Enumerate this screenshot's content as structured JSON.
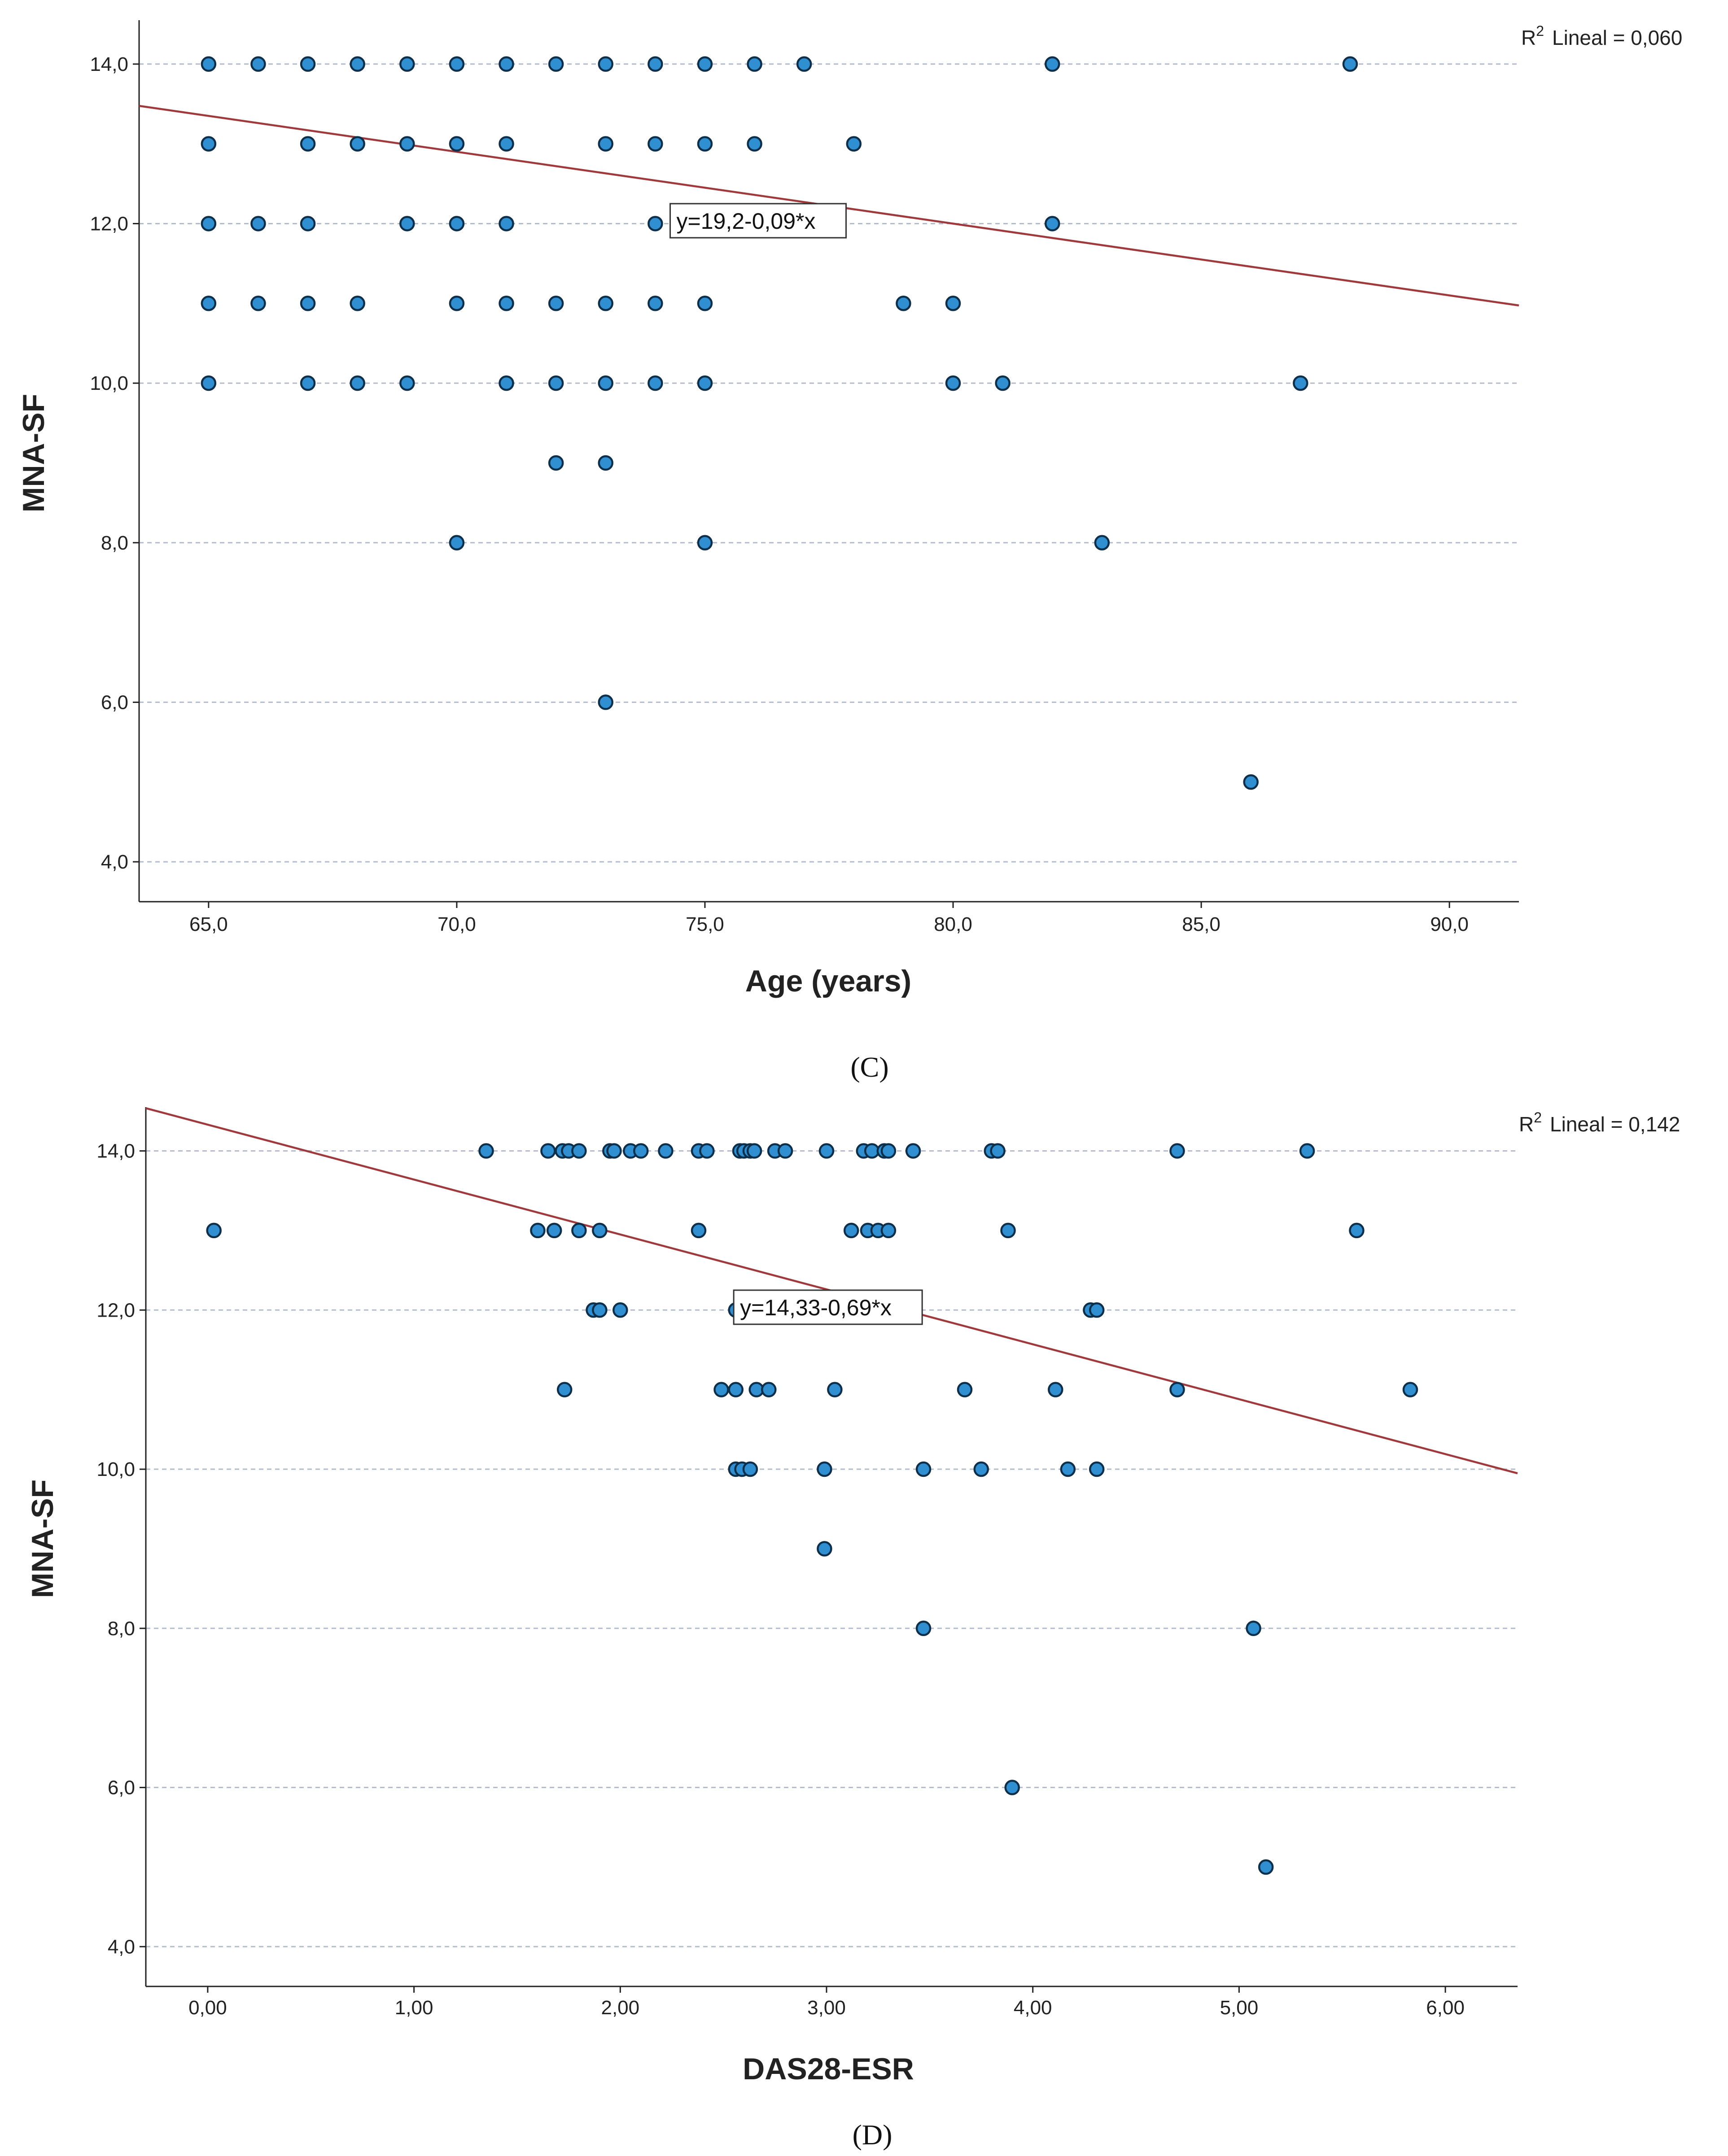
{
  "chart_data": [
    {
      "type": "scatter",
      "panel_label": "(C)",
      "xlabel": "Age (years)",
      "ylabel": "MNA-SF",
      "xlim": [
        63.6,
        91.4
      ],
      "ylim": [
        3.5,
        14.55
      ],
      "xticks": [
        65,
        70,
        75,
        80,
        85,
        90
      ],
      "xtick_labels": [
        "65,0",
        "70,0",
        "75,0",
        "80,0",
        "85,0",
        "90,0"
      ],
      "yticks": [
        4,
        6,
        8,
        10,
        12,
        14
      ],
      "ytick_labels": [
        "4,0",
        "6,0",
        "8,0",
        "10,0",
        "12,0",
        "14,0"
      ],
      "grid": "horizontal dashed",
      "r2_label": "Lineal = 0,060",
      "r2_superscript": "2",
      "r2_prefix": "R",
      "fit": {
        "intercept": 19.2,
        "slope": -0.09,
        "label": "y=19,2-0,09*x",
        "label_x": 74.3,
        "label_y": 12.25
      },
      "points": [
        [
          65,
          14
        ],
        [
          66,
          14
        ],
        [
          67,
          14
        ],
        [
          68,
          14
        ],
        [
          69,
          14
        ],
        [
          70,
          14
        ],
        [
          71,
          14
        ],
        [
          72,
          14
        ],
        [
          73,
          14
        ],
        [
          74,
          14
        ],
        [
          75,
          14
        ],
        [
          76,
          14
        ],
        [
          77,
          14
        ],
        [
          82,
          14
        ],
        [
          88,
          14
        ],
        [
          65,
          13
        ],
        [
          67,
          13
        ],
        [
          68,
          13
        ],
        [
          69,
          13
        ],
        [
          70,
          13
        ],
        [
          71,
          13
        ],
        [
          73,
          13
        ],
        [
          74,
          13
        ],
        [
          75,
          13
        ],
        [
          76,
          13
        ],
        [
          78,
          13
        ],
        [
          65,
          12
        ],
        [
          66,
          12
        ],
        [
          67,
          12
        ],
        [
          69,
          12
        ],
        [
          70,
          12
        ],
        [
          71,
          12
        ],
        [
          74,
          12
        ],
        [
          82,
          12
        ],
        [
          65,
          11
        ],
        [
          66,
          11
        ],
        [
          67,
          11
        ],
        [
          68,
          11
        ],
        [
          70,
          11
        ],
        [
          71,
          11
        ],
        [
          72,
          11
        ],
        [
          73,
          11
        ],
        [
          74,
          11
        ],
        [
          75,
          11
        ],
        [
          79,
          11
        ],
        [
          80,
          11
        ],
        [
          65,
          10
        ],
        [
          67,
          10
        ],
        [
          68,
          10
        ],
        [
          69,
          10
        ],
        [
          71,
          10
        ],
        [
          72,
          10
        ],
        [
          73,
          10
        ],
        [
          74,
          10
        ],
        [
          75,
          10
        ],
        [
          80,
          10
        ],
        [
          81,
          10
        ],
        [
          87,
          10
        ],
        [
          72,
          9
        ],
        [
          73,
          9
        ],
        [
          70,
          8
        ],
        [
          75,
          8
        ],
        [
          83,
          8
        ],
        [
          73,
          6
        ],
        [
          86,
          5
        ]
      ],
      "colors": {
        "point_fill": "#2f8fd1",
        "point_stroke": "#0d2f4a",
        "line": "#a0393b",
        "grid": "#b4bccb"
      }
    },
    {
      "type": "scatter",
      "panel_label": "(D)",
      "xlabel": "DAS28-ESR",
      "ylabel": "MNA-SF",
      "xlim": [
        -0.3,
        6.35
      ],
      "ylim": [
        3.5,
        14.55
      ],
      "xticks": [
        0,
        1,
        2,
        3,
        4,
        5,
        6
      ],
      "xtick_labels": [
        "0,00",
        "1,00",
        "2,00",
        "3,00",
        "4,00",
        "5,00",
        "6,00"
      ],
      "yticks": [
        4,
        6,
        8,
        10,
        12,
        14
      ],
      "ytick_labels": [
        "4,0",
        "6,0",
        "8,0",
        "10,0",
        "12,0",
        "14,0"
      ],
      "grid": "horizontal dashed",
      "r2_label": "Lineal = 0,142",
      "r2_superscript": "2",
      "r2_prefix": "R",
      "fit": {
        "intercept": 14.33,
        "slope": -0.69,
        "label": "y=14,33-0,69*x",
        "label_x": 2.55,
        "label_y": 12.25
      },
      "points": [
        [
          1.35,
          14
        ],
        [
          1.65,
          14
        ],
        [
          1.72,
          14
        ],
        [
          1.75,
          14
        ],
        [
          1.8,
          14
        ],
        [
          1.95,
          14
        ],
        [
          1.97,
          14
        ],
        [
          2.05,
          14
        ],
        [
          2.1,
          14
        ],
        [
          2.22,
          14
        ],
        [
          2.38,
          14
        ],
        [
          2.42,
          14
        ],
        [
          2.58,
          14
        ],
        [
          2.6,
          14
        ],
        [
          2.63,
          14
        ],
        [
          2.65,
          14
        ],
        [
          2.75,
          14
        ],
        [
          2.8,
          14
        ],
        [
          3.0,
          14
        ],
        [
          3.18,
          14
        ],
        [
          3.22,
          14
        ],
        [
          3.28,
          14
        ],
        [
          3.3,
          14
        ],
        [
          3.42,
          14
        ],
        [
          3.8,
          14
        ],
        [
          3.83,
          14
        ],
        [
          4.7,
          14
        ],
        [
          5.33,
          14
        ],
        [
          0.03,
          13
        ],
        [
          1.6,
          13
        ],
        [
          1.68,
          13
        ],
        [
          1.8,
          13
        ],
        [
          1.9,
          13
        ],
        [
          2.38,
          13
        ],
        [
          3.12,
          13
        ],
        [
          3.2,
          13
        ],
        [
          3.25,
          13
        ],
        [
          3.3,
          13
        ],
        [
          3.88,
          13
        ],
        [
          5.57,
          13
        ],
        [
          1.87,
          12
        ],
        [
          1.9,
          12
        ],
        [
          2.0,
          12
        ],
        [
          2.56,
          12
        ],
        [
          2.66,
          12
        ],
        [
          4.28,
          12
        ],
        [
          4.31,
          12
        ],
        [
          1.73,
          11
        ],
        [
          2.49,
          11
        ],
        [
          2.56,
          11
        ],
        [
          2.66,
          11
        ],
        [
          2.72,
          11
        ],
        [
          3.04,
          11
        ],
        [
          3.67,
          11
        ],
        [
          4.11,
          11
        ],
        [
          4.7,
          11
        ],
        [
          5.83,
          11
        ],
        [
          2.56,
          10
        ],
        [
          2.59,
          10
        ],
        [
          2.63,
          10
        ],
        [
          2.99,
          10
        ],
        [
          3.47,
          10
        ],
        [
          3.75,
          10
        ],
        [
          4.17,
          10
        ],
        [
          4.31,
          10
        ],
        [
          2.99,
          9
        ],
        [
          3.47,
          8
        ],
        [
          5.07,
          8
        ],
        [
          3.9,
          6
        ],
        [
          5.13,
          5
        ]
      ],
      "colors": {
        "point_fill": "#2f8fd1",
        "point_stroke": "#0d2f4a",
        "line": "#a0393b",
        "grid": "#b4bccb"
      }
    }
  ]
}
